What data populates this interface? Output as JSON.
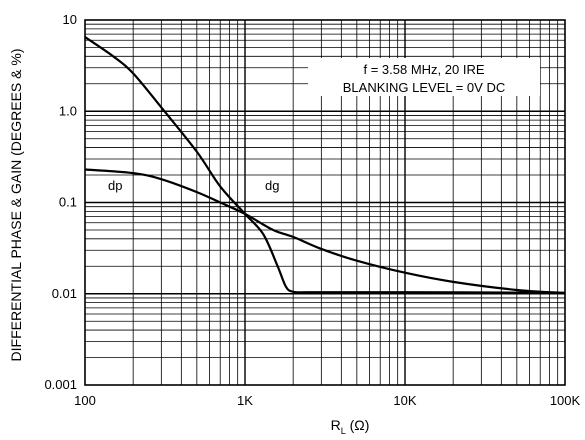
{
  "chart_data": {
    "type": "line",
    "xscale": "log",
    "yscale": "log",
    "xlim": [
      100,
      100000
    ],
    "ylim": [
      0.001,
      10
    ],
    "xlabel_main": "R",
    "xlabel_sub": "L",
    "xlabel_unit": " (Ω)",
    "ylabel": "DIFFERENTIAL PHASE & GAIN (DEGREES & %)",
    "x_tick_labels": [
      "100",
      "1K",
      "10K",
      "100K"
    ],
    "y_tick_labels": [
      "0.001",
      "0.01",
      "0.1",
      "1.0",
      "10"
    ],
    "grid": true,
    "annotations": [
      "f = 3.58 MHz, 20 IRE",
      "BLANKING LEVEL = 0V DC"
    ],
    "series": [
      {
        "name": "dg",
        "x": [
          100,
          150,
          200,
          300,
          500,
          700,
          1000,
          1300,
          1600,
          1800,
          2000,
          2500,
          5000,
          10000,
          50000,
          100000
        ],
        "y": [
          6.5,
          4.0,
          2.6,
          1.1,
          0.36,
          0.15,
          0.075,
          0.045,
          0.02,
          0.012,
          0.0105,
          0.0104,
          0.0104,
          0.0104,
          0.0103,
          0.0102
        ]
      },
      {
        "name": "dp",
        "x": [
          100,
          200,
          300,
          500,
          700,
          1000,
          1500,
          2000,
          3000,
          5000,
          10000,
          20000,
          50000,
          100000
        ],
        "y": [
          0.23,
          0.21,
          0.18,
          0.13,
          0.1,
          0.075,
          0.05,
          0.042,
          0.031,
          0.023,
          0.017,
          0.0135,
          0.011,
          0.0102
        ]
      }
    ]
  }
}
